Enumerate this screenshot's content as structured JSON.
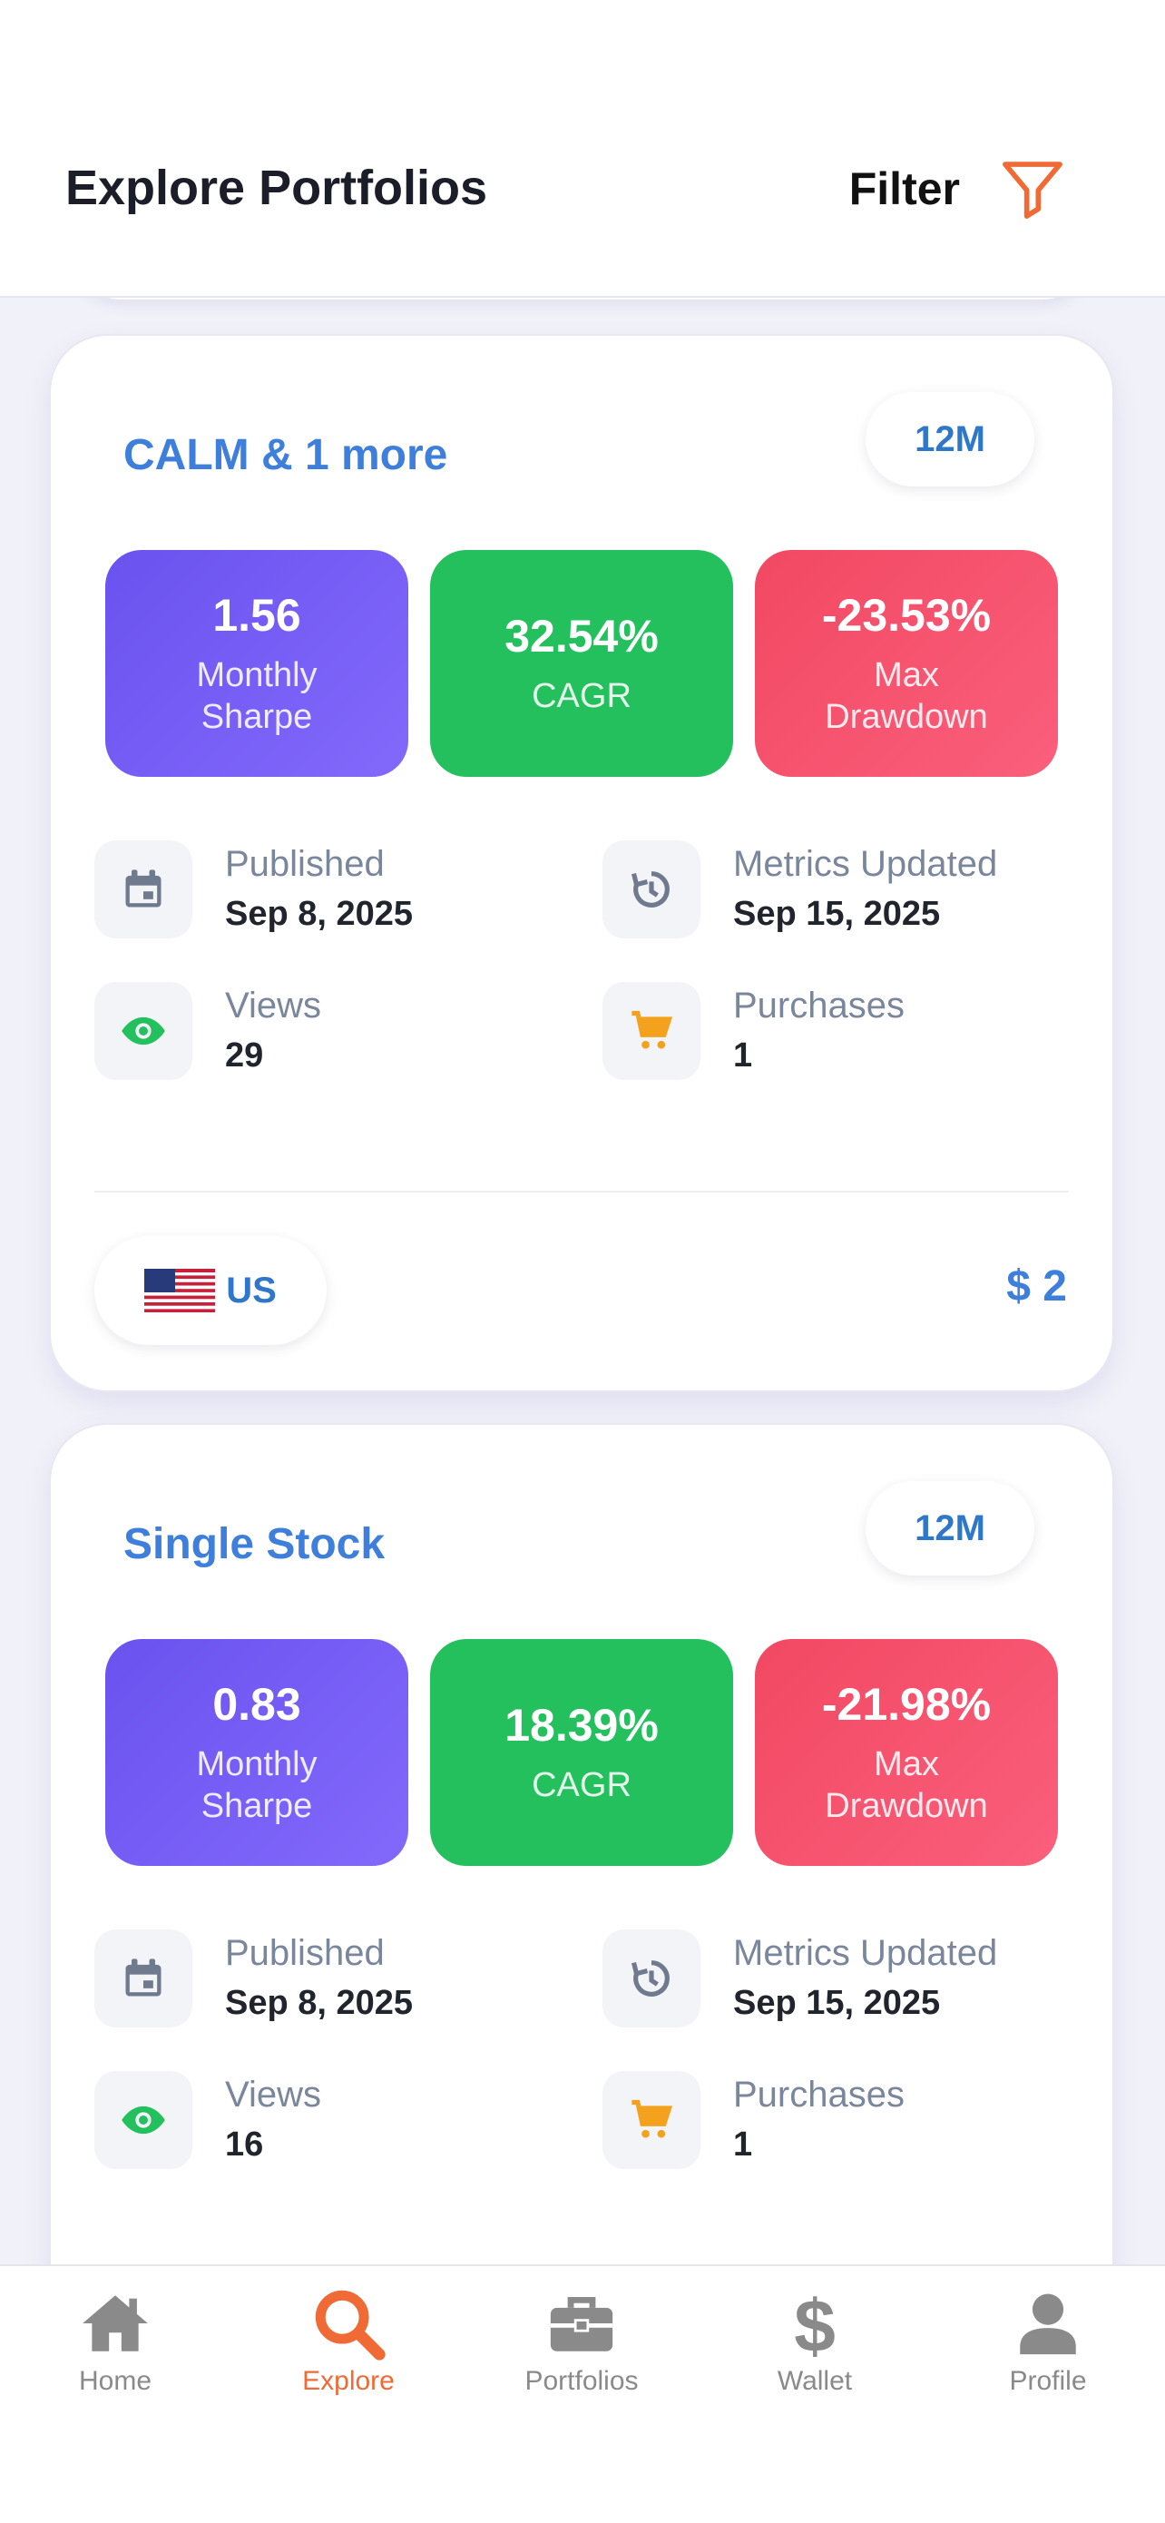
{
  "header": {
    "title": "Explore Portfolios",
    "filter_label": "Filter"
  },
  "colors": {
    "accent": "#ef6a35",
    "link_blue": "#3d7fdb",
    "sharpe": "#7059f3",
    "cagr": "#23c05d",
    "drawdown": "#f6506d"
  },
  "cards": [
    {
      "title": "CALM & 1 more",
      "period": "12M",
      "metrics": {
        "sharpe": {
          "value": "1.56",
          "label": "Monthly Sharpe"
        },
        "cagr": {
          "value": "32.54%",
          "label": "CAGR"
        },
        "drawdown": {
          "value": "-23.53%",
          "label": "Max Drawdown"
        }
      },
      "published": {
        "label": "Published",
        "value": "Sep 8, 2025"
      },
      "updated": {
        "label": "Metrics Updated",
        "value": "Sep 15, 2025"
      },
      "views": {
        "label": "Views",
        "value": "29"
      },
      "purchases": {
        "label": "Purchases",
        "value": "1"
      },
      "region": "US",
      "price": "$ 2"
    },
    {
      "title": "Single Stock",
      "period": "12M",
      "metrics": {
        "sharpe": {
          "value": "0.83",
          "label": "Monthly Sharpe"
        },
        "cagr": {
          "value": "18.39%",
          "label": "CAGR"
        },
        "drawdown": {
          "value": "-21.98%",
          "label": "Max Drawdown"
        }
      },
      "published": {
        "label": "Published",
        "value": "Sep 8, 2025"
      },
      "updated": {
        "label": "Metrics Updated",
        "value": "Sep 15, 2025"
      },
      "views": {
        "label": "Views",
        "value": "16"
      },
      "purchases": {
        "label": "Purchases",
        "value": "1"
      }
    }
  ],
  "tabs": [
    {
      "label": "Home",
      "icon": "home-icon"
    },
    {
      "label": "Explore",
      "icon": "search-icon",
      "active": true
    },
    {
      "label": "Portfolios",
      "icon": "briefcase-icon"
    },
    {
      "label": "Wallet",
      "icon": "dollar-icon"
    },
    {
      "label": "Profile",
      "icon": "person-icon"
    }
  ]
}
